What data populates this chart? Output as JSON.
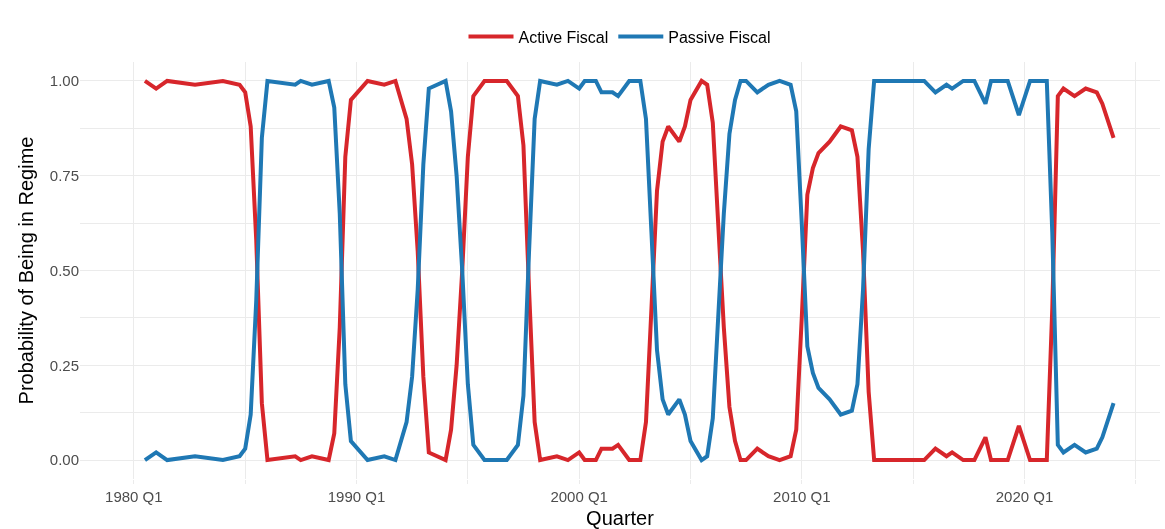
{
  "chart_data": {
    "type": "line",
    "xlabel": "Quarter",
    "ylabel": "Probability of Being in Regime",
    "x": [
      "1980-07",
      "1981-01",
      "1981-07",
      "1982-10",
      "1984-01",
      "1984-10",
      "1985-01",
      "1985-04",
      "1985-07",
      "1985-10",
      "1986-01",
      "1987-04",
      "1987-07",
      "1988-01",
      "1988-10",
      "1989-01",
      "1989-04",
      "1989-07",
      "1989-10",
      "1990-07",
      "1991-04",
      "1991-10",
      "1992-04",
      "1992-07",
      "1992-10",
      "1993-01",
      "1993-04",
      "1994-01",
      "1994-04",
      "1994-07",
      "1994-10",
      "1995-01",
      "1995-04",
      "1995-10",
      "1996-10",
      "1997-04",
      "1997-07",
      "1997-10",
      "1998-01",
      "1998-04",
      "1999-01",
      "1999-07",
      "2000-01",
      "2000-04",
      "2000-10",
      "2001-01",
      "2001-07",
      "2001-10",
      "2002-04",
      "2002-10",
      "2003-01",
      "2003-04",
      "2003-07",
      "2003-10",
      "2004-01",
      "2004-07",
      "2004-10",
      "2005-01",
      "2005-07",
      "2005-10",
      "2006-01",
      "2006-04",
      "2006-07",
      "2006-10",
      "2007-01",
      "2007-04",
      "2007-07",
      "2008-01",
      "2008-07",
      "2009-01",
      "2009-07",
      "2009-10",
      "2010-01",
      "2010-04",
      "2010-07",
      "2010-10",
      "2011-04",
      "2011-10",
      "2012-04",
      "2012-07",
      "2012-10",
      "2013-01",
      "2013-04",
      "2015-07",
      "2016-01",
      "2016-07",
      "2016-10",
      "2017-04",
      "2017-10",
      "2018-04",
      "2018-07",
      "2019-04",
      "2019-10",
      "2020-04",
      "2021-01",
      "2021-04",
      "2021-07",
      "2021-10",
      "2022-04",
      "2022-10",
      "2023-04",
      "2023-07",
      "2024-01"
    ],
    "series": [
      {
        "name": "Active Fiscal",
        "color": "#d7262b",
        "values": [
          1.0,
          0.98,
          1.0,
          0.99,
          1.0,
          0.99,
          0.97,
          0.88,
          0.58,
          0.15,
          0.0,
          0.01,
          0.0,
          0.01,
          0.0,
          0.07,
          0.35,
          0.8,
          0.95,
          1.0,
          0.99,
          1.0,
          0.9,
          0.78,
          0.55,
          0.22,
          0.02,
          0.0,
          0.08,
          0.25,
          0.5,
          0.8,
          0.96,
          1.0,
          1.0,
          0.96,
          0.83,
          0.45,
          0.1,
          0.0,
          0.01,
          0.0,
          0.02,
          0.0,
          0.0,
          0.03,
          0.03,
          0.04,
          0.0,
          0.0,
          0.1,
          0.4,
          0.71,
          0.84,
          0.88,
          0.84,
          0.88,
          0.95,
          1.0,
          0.99,
          0.89,
          0.62,
          0.35,
          0.14,
          0.05,
          0.0,
          0.0,
          0.03,
          0.01,
          0.0,
          0.01,
          0.08,
          0.38,
          0.7,
          0.77,
          0.81,
          0.84,
          0.88,
          0.87,
          0.8,
          0.55,
          0.18,
          0.0,
          0.0,
          0.03,
          0.01,
          0.02,
          0.0,
          0.0,
          0.06,
          0.0,
          0.0,
          0.09,
          0.0,
          0.0,
          0.4,
          0.96,
          0.98,
          0.96,
          0.98,
          0.97,
          0.94,
          0.85
        ]
      },
      {
        "name": "Passive Fiscal",
        "color": "#1f78b4",
        "values": [
          0.0,
          0.02,
          0.0,
          0.01,
          0.0,
          0.01,
          0.03,
          0.12,
          0.42,
          0.85,
          1.0,
          0.99,
          1.0,
          0.99,
          1.0,
          0.93,
          0.65,
          0.2,
          0.05,
          0.0,
          0.01,
          0.0,
          0.1,
          0.22,
          0.45,
          0.78,
          0.98,
          1.0,
          0.92,
          0.75,
          0.5,
          0.2,
          0.04,
          0.0,
          0.0,
          0.04,
          0.17,
          0.55,
          0.9,
          1.0,
          0.99,
          1.0,
          0.98,
          1.0,
          1.0,
          0.97,
          0.97,
          0.96,
          1.0,
          1.0,
          0.9,
          0.6,
          0.29,
          0.16,
          0.12,
          0.16,
          0.12,
          0.05,
          0.0,
          0.01,
          0.11,
          0.38,
          0.65,
          0.86,
          0.95,
          1.0,
          1.0,
          0.97,
          0.99,
          1.0,
          0.99,
          0.92,
          0.62,
          0.3,
          0.23,
          0.19,
          0.16,
          0.12,
          0.13,
          0.2,
          0.45,
          0.82,
          1.0,
          1.0,
          0.97,
          0.99,
          0.98,
          1.0,
          1.0,
          0.94,
          1.0,
          1.0,
          0.91,
          1.0,
          1.0,
          0.6,
          0.04,
          0.02,
          0.04,
          0.02,
          0.03,
          0.06,
          0.15
        ]
      }
    ],
    "xlim": [
      "1977-08",
      "2026-02"
    ],
    "xticks": [
      {
        "value": "1980-01",
        "label": "1980 Q1"
      },
      {
        "value": "1985-01",
        "label": null
      },
      {
        "value": "1990-01",
        "label": "1990 Q1"
      },
      {
        "value": "1995-01",
        "label": null
      },
      {
        "value": "2000-01",
        "label": "2000 Q1"
      },
      {
        "value": "2005-01",
        "label": null
      },
      {
        "value": "2010-01",
        "label": "2010 Q1"
      },
      {
        "value": "2015-01",
        "label": null
      },
      {
        "value": "2020-01",
        "label": "2020 Q1"
      },
      {
        "value": "2025-01",
        "label": null
      }
    ],
    "ylim": [
      -0.05,
      1.05
    ],
    "yticks": [
      {
        "value": 0,
        "label": "0.00"
      },
      {
        "value": 0.125,
        "label": null
      },
      {
        "value": 0.25,
        "label": "0.25"
      },
      {
        "value": 0.375,
        "label": null
      },
      {
        "value": 0.5,
        "label": "0.50"
      },
      {
        "value": 0.625,
        "label": null
      },
      {
        "value": 0.75,
        "label": "0.75"
      },
      {
        "value": 0.875,
        "label": null
      },
      {
        "value": 1,
        "label": "1.00"
      }
    ],
    "grid": true,
    "legend": "top",
    "marker": "none",
    "line_style": "solid"
  }
}
